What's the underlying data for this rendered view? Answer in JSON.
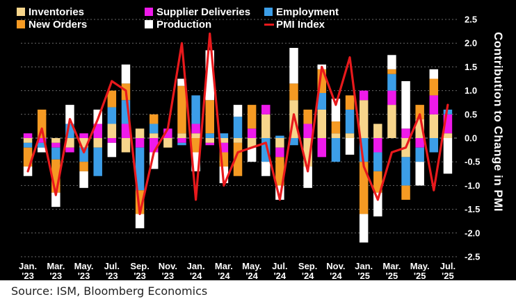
{
  "chart_data": {
    "type": "bar",
    "stacked": true,
    "xlabel": "",
    "ylabel": "Contribution to Change in PMI",
    "ylim": [
      -2.5,
      2.5
    ],
    "y_ticks": [
      "2.5",
      "2.0",
      "1.5",
      "1.0",
      "0.5",
      "0.0",
      "-0.5",
      "-1.0",
      "-1.5",
      "-2.0",
      "-2.5"
    ],
    "y_tick_values": [
      2.5,
      2.0,
      1.5,
      1.0,
      0.5,
      0.0,
      -0.5,
      -1.0,
      -1.5,
      -2.0,
      -2.5
    ],
    "grid": "horizontal dotted",
    "background": "#000000",
    "x_tick_labels": [
      {
        "month": "Jan.",
        "year": "'23",
        "index": 0
      },
      {
        "month": "Mar.",
        "year": "'23",
        "index": 2
      },
      {
        "month": "May.",
        "year": "'23",
        "index": 4
      },
      {
        "month": "Jul.",
        "year": "'23",
        "index": 6
      },
      {
        "month": "Sep.",
        "year": "'23",
        "index": 8
      },
      {
        "month": "Nov.",
        "year": "'23",
        "index": 10
      },
      {
        "month": "Jan.",
        "year": "'24",
        "index": 12
      },
      {
        "month": "Mar.",
        "year": "'24",
        "index": 14
      },
      {
        "month": "May.",
        "year": "'24",
        "index": 16
      },
      {
        "month": "Jul.",
        "year": "'24",
        "index": 18
      },
      {
        "month": "Sep.",
        "year": "'24",
        "index": 20
      },
      {
        "month": "Nov.",
        "year": "'24",
        "index": 22
      },
      {
        "month": "Jan.",
        "year": "'25",
        "index": 24
      },
      {
        "month": "Mar.",
        "year": "'25",
        "index": 26
      },
      {
        "month": "May.",
        "year": "'25",
        "index": 28
      },
      {
        "month": "Jul.",
        "year": "'25",
        "index": 30
      }
    ],
    "series": [
      {
        "name": "Inventories",
        "color": "#f7d58b",
        "kind": "bar",
        "values": [
          -0.1,
          0.0,
          -0.1,
          -0.2,
          -0.2,
          -0.2,
          0.3,
          -0.3,
          0.2,
          0.1,
          -0.2,
          0.1,
          0.1,
          -0.1,
          -0.1,
          -0.1,
          -0.2,
          0.5,
          -0.2,
          0.8,
          -0.6,
          0.6,
          0.1,
          0.1,
          0.8,
          0.3,
          0.7,
          -0.4,
          0.4,
          0.5,
          0.1
        ]
      },
      {
        "name": "Supplier Deliveries",
        "color": "#ee1aea",
        "kind": "bar",
        "values": [
          0.1,
          -0.1,
          -0.1,
          -0.1,
          0.1,
          0.3,
          -0.1,
          0.3,
          -0.2,
          -0.3,
          0.2,
          -0.1,
          0.2,
          -0.05,
          -0.2,
          0.0,
          0.2,
          0.2,
          -0.2,
          0.0,
          0.3,
          -0.4,
          0.0,
          0.0,
          0.2,
          -0.3,
          0.3,
          0.2,
          -0.2,
          0.4,
          0.4
        ]
      },
      {
        "name": "Employment",
        "color": "#3c9ee8",
        "kind": "bar",
        "values": [
          -0.1,
          -0.1,
          -0.25,
          0.3,
          -0.3,
          -0.6,
          0.35,
          0.5,
          -0.9,
          0.2,
          0.0,
          -0.05,
          0.6,
          0.1,
          0.1,
          0.45,
          0.0,
          -0.5,
          0.05,
          -0.15,
          0.0,
          0.35,
          -0.5,
          0.5,
          -0.5,
          -0.4,
          0.35,
          -0.6,
          -0.3,
          -0.3,
          0.1
        ]
      },
      {
        "name": "New Orders",
        "color": "#f59a23",
        "kind": "bar",
        "values": [
          -0.4,
          0.6,
          -0.7,
          0.0,
          -0.2,
          0.0,
          0.35,
          0.35,
          -0.5,
          0.2,
          0.0,
          1.0,
          -0.3,
          0.7,
          -0.3,
          -0.7,
          0.5,
          0.0,
          -0.6,
          0.35,
          0.3,
          0.5,
          0.25,
          0.3,
          -1.1,
          -0.45,
          0.1,
          -0.3,
          0.3,
          0.35,
          0.0
        ]
      },
      {
        "name": "Production",
        "color": "#ffffff",
        "kind": "bar",
        "values": [
          -0.2,
          -0.1,
          -0.3,
          0.4,
          -0.35,
          0.3,
          -0.3,
          0.4,
          -0.3,
          -0.35,
          0.0,
          0.15,
          -0.4,
          1.05,
          -0.35,
          0.25,
          -0.3,
          -0.3,
          -0.3,
          0.75,
          -0.45,
          0.1,
          0.48,
          -0.35,
          -0.6,
          -0.5,
          0.3,
          1.0,
          -0.5,
          0.2,
          -0.75
        ]
      },
      {
        "name": "PMI Index",
        "color": "#e8191c",
        "kind": "line",
        "values": [
          -0.7,
          0.2,
          -1.2,
          0.4,
          -0.3,
          0.4,
          1.2,
          1.0,
          -1.6,
          -0.3,
          0.2,
          2.0,
          -1.3,
          2.2,
          -1.0,
          -0.3,
          -0.2,
          -0.1,
          -1.3,
          0.5,
          -0.7,
          1.5,
          0.7,
          1.7,
          -0.6,
          -1.3,
          -0.3,
          -0.2,
          0.5,
          -1.1,
          0.7
        ]
      }
    ]
  },
  "source": "Source: ISM, Bloomberg Economics"
}
